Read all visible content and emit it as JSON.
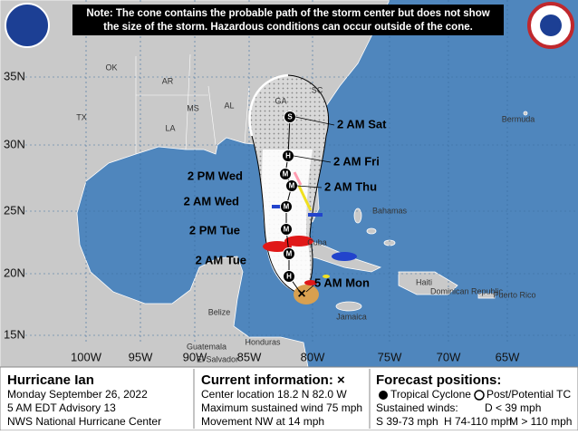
{
  "note": [
    "Note: The cone contains the probable path of the storm center but does not show",
    "the size of the storm. Hazardous conditions can occur outside of the cone."
  ],
  "map": {
    "lat_labels": [
      "35N",
      "30N",
      "25N",
      "20N",
      "15N"
    ],
    "lon_labels": [
      "100W",
      "95W",
      "90W",
      "85W",
      "80W",
      "75W",
      "70W",
      "65W"
    ],
    "places": [
      "OK",
      "AR",
      "TX",
      "LA",
      "MS",
      "AL",
      "GA",
      "SC",
      "Bermuda",
      "Bahamas",
      "Cuba",
      "Haiti",
      "Dominican Republic",
      "Jamaica",
      "Puerto Rico",
      "Belize",
      "Honduras",
      "Guatemala",
      "El Salvador"
    ],
    "forecast_points": [
      {
        "marker": "S",
        "label": "2 AM Sat"
      },
      {
        "marker": "H",
        "label": "2 AM Fri"
      },
      {
        "marker": "M",
        "label": "2 PM Wed"
      },
      {
        "marker": "M",
        "label": "2 AM Thu"
      },
      {
        "marker": "M",
        "label": "2 AM Wed"
      },
      {
        "marker": "M",
        "label": "2 PM Tue"
      },
      {
        "marker": "M",
        "label": "2 AM Tue"
      },
      {
        "marker": "H"
      }
    ],
    "current_label": "5 AM Mon"
  },
  "storm": {
    "name": "Hurricane Ian",
    "date": "Monday September 26, 2022",
    "advisory": "5 AM EDT Advisory 13",
    "office": "NWS National Hurricane Center"
  },
  "current": {
    "title": "Current information: ×",
    "location": "Center location 18.2 N 82.0 W",
    "wind": "Maximum sustained wind 75 mph",
    "movement": "Movement NW at 14 mph"
  },
  "legend": {
    "title": "Forecast positions:",
    "tropical": "Tropical Cyclone",
    "post": "Post/Potential TC",
    "winds_title": "Sustained winds:",
    "d": "D < 39 mph",
    "s": "S 39-73 mph",
    "h": "H 74-110 mph",
    "m": "M > 110 mph"
  }
}
